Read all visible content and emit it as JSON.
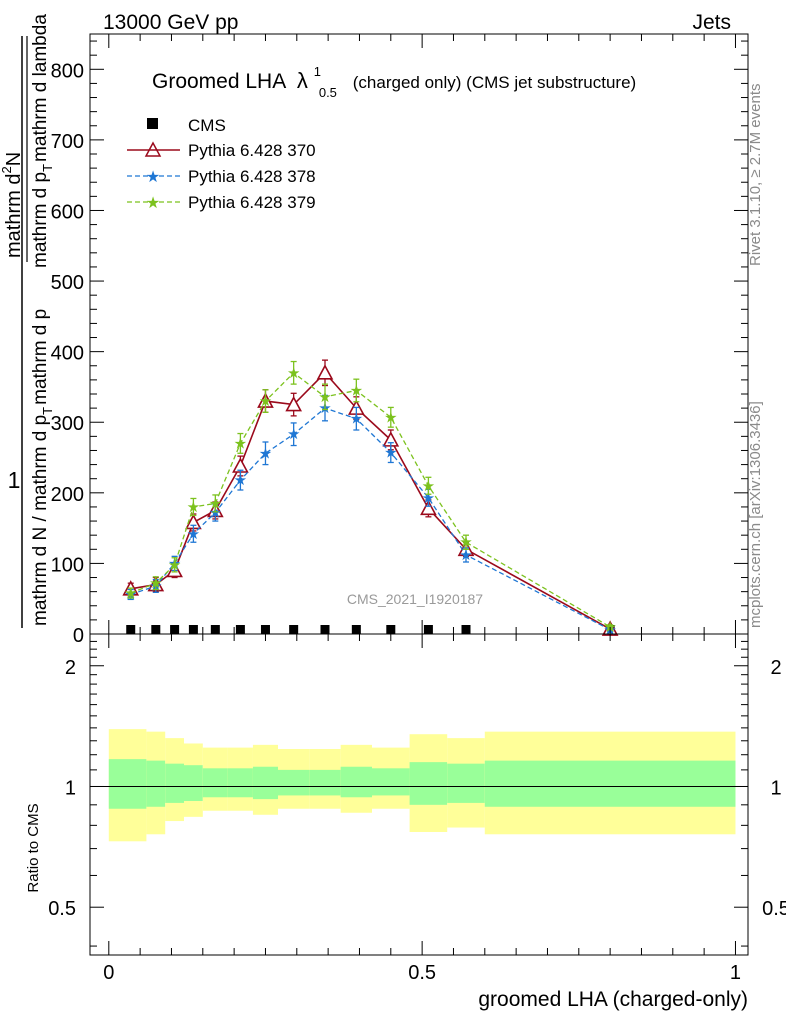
{
  "header": {
    "left": "13000 GeV pp",
    "right": "Jets"
  },
  "title": {
    "main": "Groomed LHA",
    "lambda": "λ",
    "sup": "1",
    "sub": "0.5",
    "rest": "(charged only) (CMS jet substructure)"
  },
  "ylabel": {
    "one": "1",
    "den_a": "mathrm d N / mathrm d p",
    "den_b": "mathrm d p",
    "den_sub": "T",
    "num": "mathrm d",
    "num_sup": "2",
    "num_n": "N",
    "den2_a": "mathrm d p",
    "den2_sub": "T",
    "den2_b": "mathrm d lambda"
  },
  "right_labels": {
    "rivet": "Rivet 3.1.10, ≥ 2.7M events",
    "mcplots": "mcplots.cern.ch [arXiv:1306.3436]"
  },
  "watermark": "CMS_2021_I1920187",
  "ratio_ylabel": "Ratio to CMS",
  "xlabel": "groomed LHA (charged-only)",
  "colors": {
    "cms": "#000000",
    "p370": "#9b0a1c",
    "p378": "#1f77d4",
    "p379": "#7cc21e",
    "band_inner": "#99ff99",
    "band_outer": "#ffff99"
  },
  "chart_data": {
    "type": "line",
    "xlim": [
      -0.03,
      1.02
    ],
    "ylim": [
      0,
      850
    ],
    "ratio_ylim": [
      0.38,
      2.4
    ],
    "x_ticks": [
      "0",
      "0.5",
      "1"
    ],
    "y_ticks": [
      "0",
      "100",
      "200",
      "300",
      "400",
      "500",
      "600",
      "700",
      "800"
    ],
    "ratio_ticks": [
      "0.5",
      "1",
      "2"
    ],
    "legend_position": "top-left",
    "x": [
      0.035,
      0.075,
      0.105,
      0.135,
      0.17,
      0.21,
      0.25,
      0.295,
      0.345,
      0.395,
      0.45,
      0.51,
      0.57,
      0.8
    ],
    "series": [
      {
        "name": "CMS",
        "key": "cms",
        "marker": "square",
        "values": [
          2,
          1,
          1,
          1,
          2,
          2,
          2,
          2,
          2,
          2,
          2,
          2,
          1,
          0
        ]
      },
      {
        "name": "Pythia 6.428 370",
        "key": "p370",
        "marker": "triangle",
        "values": [
          64,
          70,
          90,
          158,
          175,
          238,
          330,
          325,
          370,
          320,
          275,
          178,
          120,
          7
        ],
        "errors": [
          8,
          10,
          10,
          12,
          12,
          14,
          16,
          16,
          18,
          16,
          14,
          12,
          10,
          3
        ]
      },
      {
        "name": "Pythia 6.428 378",
        "key": "p378",
        "marker": "star",
        "values": [
          56,
          68,
          100,
          142,
          172,
          218,
          256,
          283,
          320,
          305,
          257,
          193,
          112,
          6
        ],
        "errors": [
          7,
          9,
          10,
          12,
          12,
          14,
          16,
          16,
          18,
          16,
          14,
          12,
          10,
          3
        ]
      },
      {
        "name": "Pythia 6.428 379",
        "key": "p379",
        "marker": "star",
        "values": [
          58,
          72,
          98,
          180,
          185,
          270,
          330,
          370,
          336,
          345,
          307,
          210,
          130,
          10
        ],
        "errors": [
          7,
          9,
          10,
          12,
          12,
          14,
          16,
          16,
          18,
          16,
          14,
          12,
          10,
          3
        ]
      }
    ],
    "ratio_bands": {
      "edges": [
        0.0,
        0.06,
        0.09,
        0.12,
        0.15,
        0.19,
        0.23,
        0.27,
        0.32,
        0.37,
        0.42,
        0.48,
        0.54,
        0.6,
        1.0
      ],
      "inner_lo": [
        0.88,
        0.89,
        0.91,
        0.92,
        0.94,
        0.94,
        0.93,
        0.95,
        0.95,
        0.94,
        0.95,
        0.9,
        0.91,
        0.89
      ],
      "inner_hi": [
        1.17,
        1.16,
        1.14,
        1.13,
        1.11,
        1.11,
        1.12,
        1.1,
        1.1,
        1.12,
        1.11,
        1.15,
        1.14,
        1.16
      ],
      "outer_lo": [
        0.73,
        0.76,
        0.82,
        0.84,
        0.87,
        0.87,
        0.85,
        0.88,
        0.88,
        0.86,
        0.88,
        0.77,
        0.79,
        0.76
      ],
      "outer_hi": [
        1.39,
        1.37,
        1.32,
        1.28,
        1.25,
        1.25,
        1.27,
        1.24,
        1.24,
        1.27,
        1.25,
        1.35,
        1.32,
        1.37
      ]
    }
  }
}
